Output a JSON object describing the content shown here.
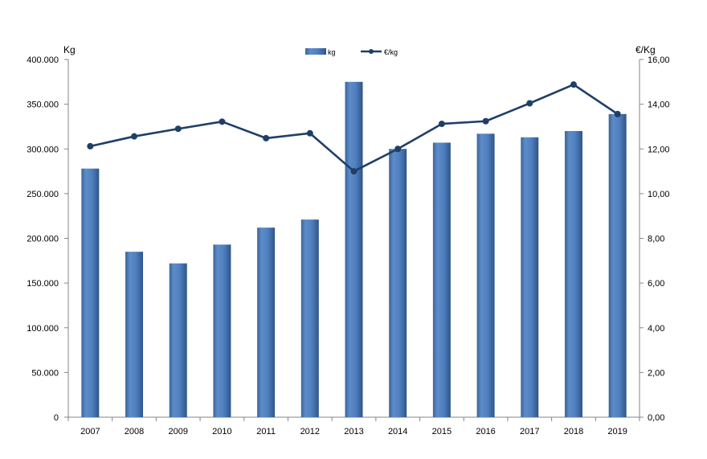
{
  "chart_data": {
    "type": "bar",
    "categories": [
      "2007",
      "2008",
      "2009",
      "2010",
      "2011",
      "2012",
      "2013",
      "2014",
      "2015",
      "2016",
      "2017",
      "2018",
      "2019"
    ],
    "series": [
      {
        "name": "kg",
        "type": "bar",
        "axis": "left",
        "color": "#4f81bd",
        "values": [
          278000,
          185000,
          172000,
          193000,
          212000,
          221000,
          375000,
          300000,
          307000,
          317000,
          313000,
          320000,
          339000
        ]
      },
      {
        "name": "€/kg",
        "type": "line",
        "axis": "right",
        "color": "#1f3f66",
        "values": [
          12.12,
          12.56,
          12.9,
          13.22,
          12.48,
          12.7,
          11.0,
          12.0,
          13.12,
          13.24,
          14.04,
          14.88,
          13.56
        ]
      }
    ],
    "y_left": {
      "label": "Kg",
      "ylim": [
        0,
        400000
      ],
      "ticks": [
        "0",
        "50.000",
        "100.000",
        "150.000",
        "200.000",
        "250.000",
        "300.000",
        "350.000",
        "400.000"
      ]
    },
    "y_right": {
      "label": "€/Kg",
      "ylim": [
        0,
        16
      ],
      "ticks": [
        "0,00",
        "2,00",
        "4,00",
        "6,00",
        "8,00",
        "10,00",
        "12,00",
        "14,00",
        "16,00"
      ]
    },
    "grid": false,
    "legend": "top-center"
  }
}
